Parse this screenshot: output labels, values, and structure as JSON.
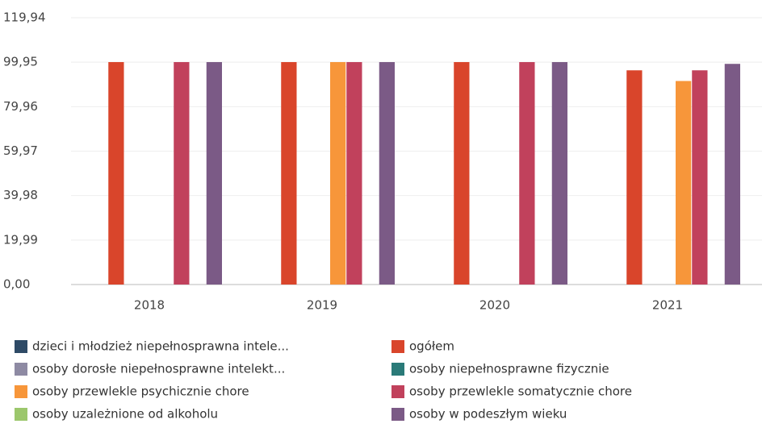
{
  "chart_data": {
    "type": "bar",
    "categories": [
      "2018",
      "2019",
      "2020",
      "2021"
    ],
    "series": [
      {
        "name": "dzieci i młodzież niepełnosprawna intele...",
        "color": "#2e4a66",
        "values": [
          null,
          null,
          null,
          null
        ]
      },
      {
        "name": "ogółem",
        "color": "#d9452b",
        "values": [
          100,
          100,
          100,
          96.3
        ]
      },
      {
        "name": "osoby dorosłe niepełnosprawne intelekt...",
        "color": "#8e8aa3",
        "values": [
          null,
          null,
          null,
          null
        ]
      },
      {
        "name": "osoby niepełnosprawne fizycznie",
        "color": "#2a7a78",
        "values": [
          null,
          null,
          null,
          null
        ]
      },
      {
        "name": "osoby przewlekle psychicznie chore",
        "color": "#f7963a",
        "values": [
          null,
          100,
          null,
          91.5
        ]
      },
      {
        "name": "osoby przewlekle somatycznie chore",
        "color": "#c1415c",
        "values": [
          100,
          100,
          100,
          96.3
        ]
      },
      {
        "name": "osoby uzależnione od alkoholu",
        "color": "#9cc76c",
        "values": [
          null,
          null,
          null,
          null
        ]
      },
      {
        "name": "osoby w podeszłym wieku",
        "color": "#7b5a86",
        "values": [
          100,
          100,
          100,
          99.2
        ]
      }
    ],
    "ylim": [
      0,
      119.94
    ],
    "yticks": [
      {
        "value": 0,
        "label": "0,00"
      },
      {
        "value": 19.99,
        "label": "19,99"
      },
      {
        "value": 39.98,
        "label": "39,98"
      },
      {
        "value": 59.97,
        "label": "59,97"
      },
      {
        "value": 79.96,
        "label": "79,96"
      },
      {
        "value": 99.95,
        "label": "99,95"
      },
      {
        "value": 119.94,
        "label": "119,94"
      }
    ],
    "grid": true
  }
}
